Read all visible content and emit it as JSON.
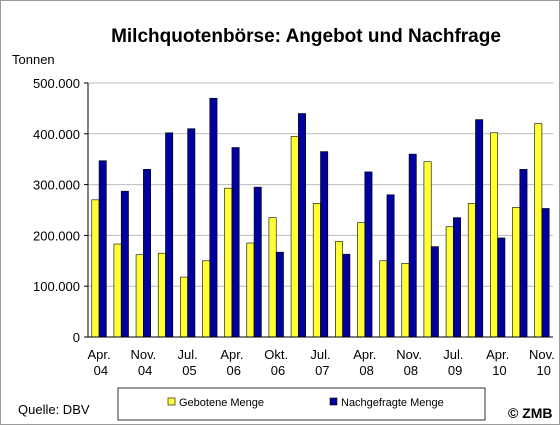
{
  "chart_data": {
    "type": "bar",
    "title": "Milchquotenbörse: Angebot und Nachfrage",
    "y_label": "Tonnen",
    "source": "Quelle: DBV",
    "copyright": "© ZMB",
    "categories": [
      "Apr. 04",
      null,
      "Nov. 04",
      null,
      "Jul. 05",
      null,
      "Apr. 06",
      null,
      "Okt. 06",
      null,
      "Jul. 07",
      null,
      "Apr. 08",
      null,
      "Nov. 08",
      null,
      "Jul. 09",
      null,
      "Apr. 10",
      null,
      "Nov. 10"
    ],
    "series": [
      {
        "name": "Gebotene Menge",
        "color": "#ffff33",
        "values": [
          270000,
          183000,
          162000,
          165000,
          118000,
          150000,
          293000,
          185000,
          235000,
          395000,
          263000,
          188000,
          225000,
          150000,
          145000,
          345000,
          217000,
          263000,
          402000,
          255000,
          420000
        ]
      },
      {
        "name": "Nachgefragte Menge",
        "color": "#00009c",
        "values": [
          347000,
          287000,
          330000,
          402000,
          410000,
          470000,
          373000,
          295000,
          167000,
          440000,
          365000,
          163000,
          325000,
          280000,
          360000,
          178000,
          235000,
          428000,
          195000,
          330000,
          253000
        ]
      }
    ],
    "ylim": [
      0,
      500000
    ],
    "yticks": [
      0,
      {
        "value": 100000,
        "label": "100.000"
      },
      {
        "value": 200000,
        "label": "200.000"
      },
      {
        "value": 300000,
        "label": "300.000"
      },
      {
        "value": 400000,
        "label": "400.000"
      },
      {
        "value": 500000,
        "label": "500.000"
      }
    ],
    "grid": true
  }
}
